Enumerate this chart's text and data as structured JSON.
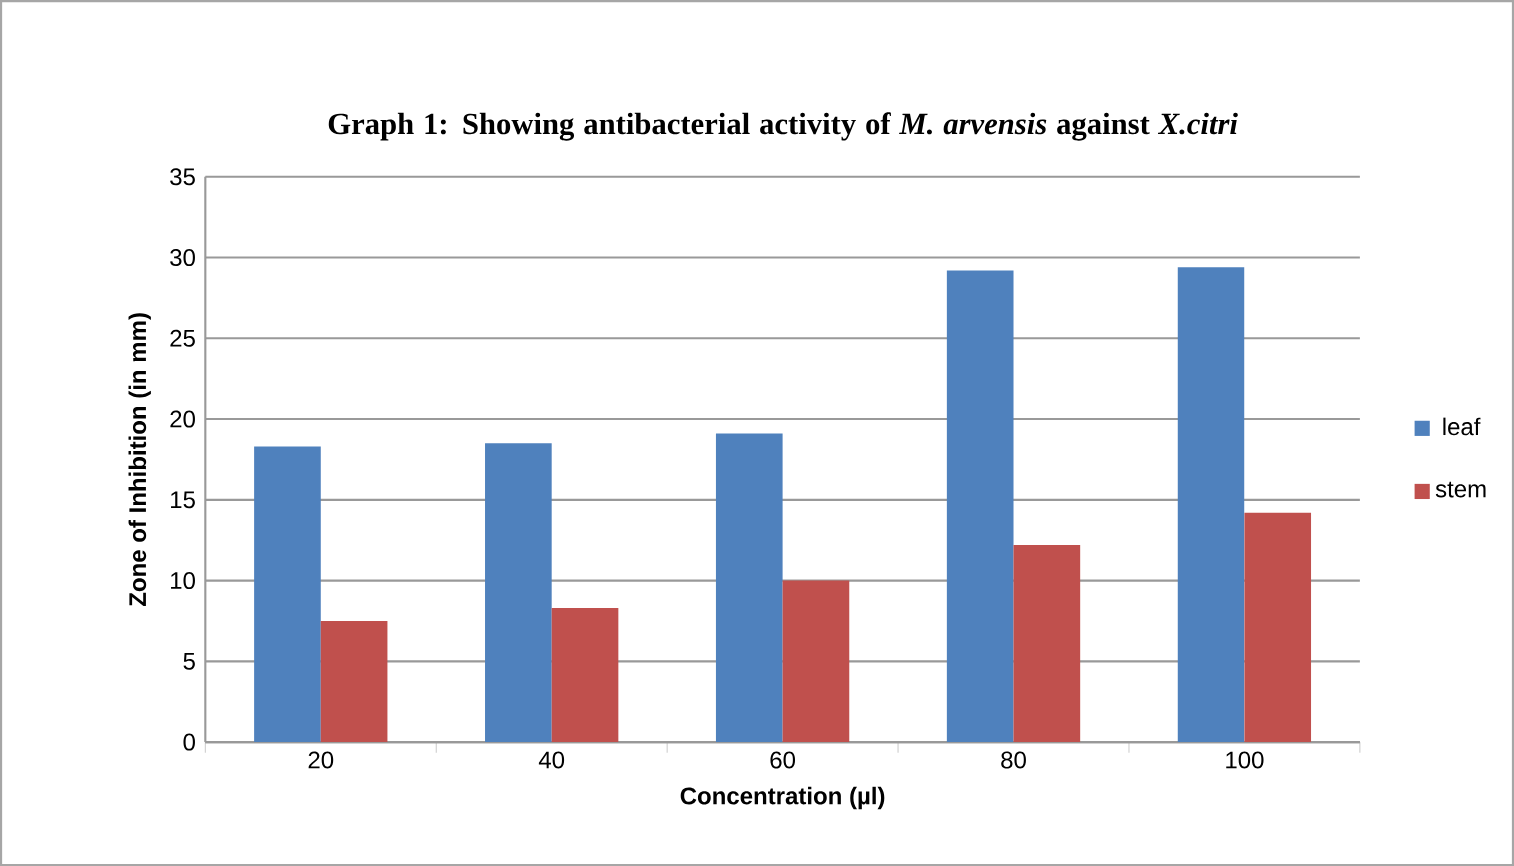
{
  "chart_data": {
    "type": "bar",
    "title": "Graph 1: Showing antibacterial activity of *M. arvensis* against *X.citri*",
    "xlabel": "Concentration (µl)",
    "ylabel": "Zone of Inhibition (in mm)",
    "categories": [
      "20",
      "40",
      "60",
      "80",
      "100"
    ],
    "series": [
      {
        "name": "leaf",
        "color": "#4f81bd",
        "values": [
          18.3,
          18.5,
          19.1,
          29.2,
          29.4
        ]
      },
      {
        "name": "stem",
        "color": "#c0504d",
        "values": [
          7.5,
          8.3,
          10.0,
          12.2,
          14.2
        ]
      }
    ],
    "ylim": [
      0,
      35
    ],
    "yticks": [
      0,
      5,
      10,
      15,
      20,
      25,
      30,
      35
    ],
    "grid": "y",
    "legend": "right"
  }
}
